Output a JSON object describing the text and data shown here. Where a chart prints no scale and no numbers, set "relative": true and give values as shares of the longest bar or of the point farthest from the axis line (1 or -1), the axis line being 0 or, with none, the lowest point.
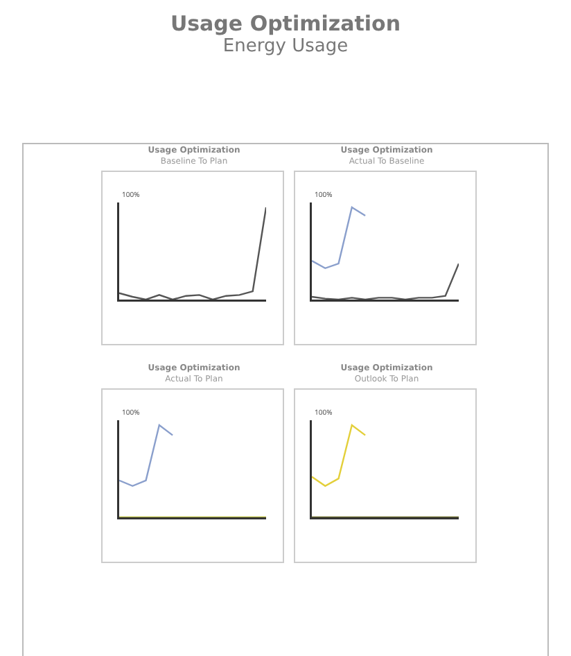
{
  "chart_data": [
    {
      "type": "other",
      "title": "Usage Optimization",
      "subtitle": "Energy Usage"
    },
    {
      "type": "line",
      "title": "Usage Optimization",
      "subtitle": "Baseline To Plan",
      "relative": true,
      "annotations": [
        "100%"
      ],
      "categories": [
        null,
        null,
        null,
        null,
        null,
        null,
        null,
        null,
        null,
        null,
        null,
        null
      ],
      "series": [
        {
          "color": "#555555",
          "values": [
            0.07,
            0.03,
            0,
            0.05,
            0,
            0.04,
            0.05,
            0,
            0.04,
            0.05,
            0.09,
            1
          ]
        }
      ]
    },
    {
      "type": "line",
      "title": "Usage Optimization",
      "subtitle": "Actual To Baseline",
      "relative": true,
      "annotations": [
        "100%"
      ],
      "categories": [
        null,
        null,
        null,
        null,
        null,
        null,
        null,
        null,
        null,
        null,
        null,
        null
      ],
      "series": [
        {
          "color": "#8a9fcc",
          "values": [
            0.42,
            0.34,
            0.39,
            1,
            0.91,
            null,
            null,
            null,
            null,
            null,
            null,
            null
          ]
        },
        {
          "color": "#555555",
          "values": [
            0.03,
            0.01,
            0,
            0.02,
            0,
            0.02,
            0.02,
            0,
            0.02,
            0.02,
            0.04,
            0.39
          ]
        }
      ]
    },
    {
      "type": "line",
      "title": "Usage Optimization",
      "subtitle": "Actual To Plan",
      "relative": true,
      "annotations": [
        "100%"
      ],
      "categories": [
        null,
        null,
        null,
        null,
        null,
        null,
        null,
        null,
        null,
        null,
        null,
        null
      ],
      "series": [
        {
          "color": "#8a9fcc",
          "values": [
            0.4,
            0.34,
            0.4,
            1,
            0.89,
            null,
            null,
            null,
            null,
            null,
            null,
            null
          ]
        },
        {
          "color": "#b5b83a",
          "values": [
            0,
            0,
            0,
            0,
            0,
            0,
            0,
            0,
            0,
            0,
            0,
            0
          ]
        }
      ]
    },
    {
      "type": "line",
      "title": "Usage Optimization",
      "subtitle": "Outlook To Plan",
      "relative": true,
      "annotations": [
        "100%"
      ],
      "categories": [
        null,
        null,
        null,
        null,
        null,
        null,
        null,
        null,
        null,
        null,
        null,
        null
      ],
      "series": [
        {
          "color": "#e3cf3a",
          "values": [
            0.44,
            0.34,
            0.42,
            1,
            0.89,
            null,
            null,
            null,
            null,
            null,
            null,
            null
          ]
        },
        {
          "color": "#6b6b2a",
          "values": [
            0,
            0,
            0,
            0,
            0,
            0,
            0,
            0,
            0,
            0,
            0,
            0
          ]
        }
      ]
    }
  ]
}
